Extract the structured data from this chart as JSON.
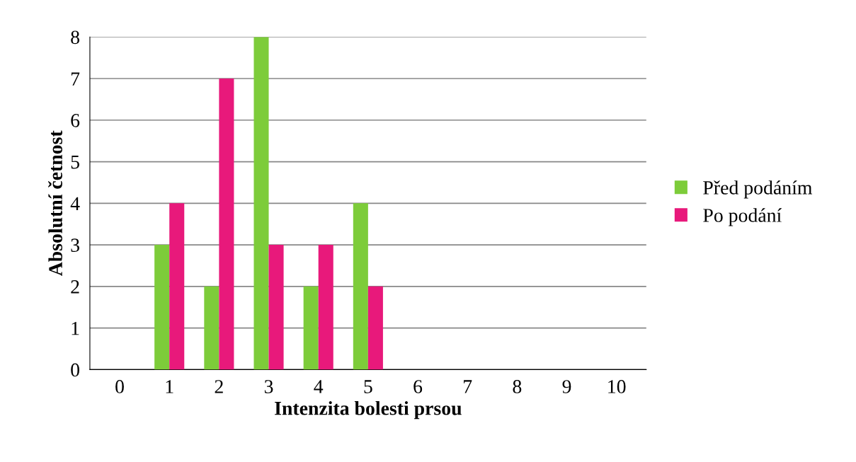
{
  "chart_data": {
    "type": "bar",
    "xlabel": "Intenzita bolesti prsou",
    "ylabel": "Absolutní četnost",
    "categories": [
      "0",
      "1",
      "2",
      "3",
      "4",
      "5",
      "6",
      "7",
      "8",
      "9",
      "10"
    ],
    "series": [
      {
        "name": "Před podáním",
        "color": "#7dcc3a",
        "values": [
          0,
          3,
          2,
          8,
          2,
          4,
          0,
          0,
          0,
          0,
          0
        ]
      },
      {
        "name": "Po podání",
        "color": "#e8197b",
        "values": [
          0,
          4,
          7,
          3,
          3,
          2,
          0,
          0,
          0,
          0,
          0
        ]
      }
    ],
    "ylim": [
      0,
      8
    ],
    "yticks": [
      0,
      1,
      2,
      3,
      4,
      5,
      6,
      7,
      8
    ],
    "grid": "y",
    "legend": "right"
  }
}
